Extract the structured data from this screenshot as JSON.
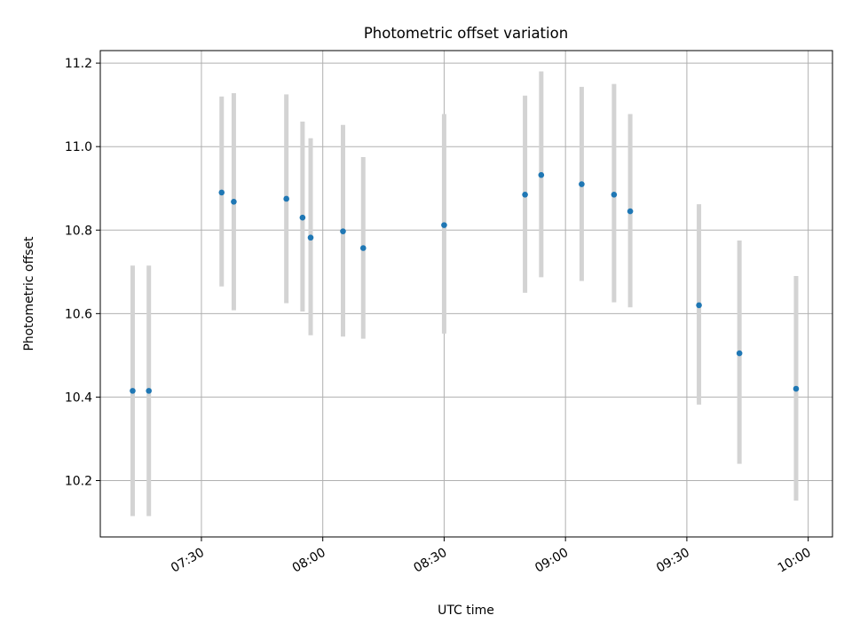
{
  "chart_data": {
    "type": "scatter",
    "title": "Photometric offset variation",
    "xlabel": "UTC time",
    "ylabel": "Photometric offset",
    "xlim": [
      "07:05",
      "10:06"
    ],
    "ylim": [
      10.065,
      11.23
    ],
    "grid": true,
    "x_ticks": [
      "07:30",
      "08:00",
      "08:30",
      "09:00",
      "09:30",
      "10:00"
    ],
    "y_ticks": [
      10.2,
      10.4,
      10.6,
      10.8,
      11.0,
      11.2
    ],
    "y_tick_labels": [
      "10.2",
      "10.4",
      "10.6",
      "10.8",
      "11.0",
      "11.2"
    ],
    "colors": {
      "points": "#1f77b4",
      "errorbars": "#d3d3d3",
      "grid": "#b0b0b0"
    },
    "points": [
      {
        "time": "07:13",
        "y": 10.415,
        "ylow": 10.115,
        "yhigh": 10.715
      },
      {
        "time": "07:17",
        "y": 10.415,
        "ylow": 10.115,
        "yhigh": 10.715
      },
      {
        "time": "07:35",
        "y": 10.89,
        "ylow": 10.665,
        "yhigh": 11.12
      },
      {
        "time": "07:38",
        "y": 10.868,
        "ylow": 10.608,
        "yhigh": 11.128
      },
      {
        "time": "07:51",
        "y": 10.875,
        "ylow": 10.625,
        "yhigh": 11.125
      },
      {
        "time": "07:55",
        "y": 10.83,
        "ylow": 10.605,
        "yhigh": 11.06
      },
      {
        "time": "07:57",
        "y": 10.782,
        "ylow": 10.548,
        "yhigh": 11.02
      },
      {
        "time": "08:05",
        "y": 10.797,
        "ylow": 10.545,
        "yhigh": 11.052
      },
      {
        "time": "08:10",
        "y": 10.757,
        "ylow": 10.54,
        "yhigh": 10.975
      },
      {
        "time": "08:30",
        "y": 10.812,
        "ylow": 10.552,
        "yhigh": 11.078
      },
      {
        "time": "08:50",
        "y": 10.885,
        "ylow": 10.65,
        "yhigh": 11.122
      },
      {
        "time": "08:54",
        "y": 10.932,
        "ylow": 10.687,
        "yhigh": 11.18
      },
      {
        "time": "09:04",
        "y": 10.91,
        "ylow": 10.678,
        "yhigh": 11.143
      },
      {
        "time": "09:12",
        "y": 10.885,
        "ylow": 10.627,
        "yhigh": 11.15
      },
      {
        "time": "09:16",
        "y": 10.845,
        "ylow": 10.615,
        "yhigh": 11.078
      },
      {
        "time": "09:33",
        "y": 10.62,
        "ylow": 10.382,
        "yhigh": 10.862
      },
      {
        "time": "09:43",
        "y": 10.505,
        "ylow": 10.24,
        "yhigh": 10.775
      },
      {
        "time": "09:57",
        "y": 10.42,
        "ylow": 10.152,
        "yhigh": 10.69
      }
    ]
  }
}
